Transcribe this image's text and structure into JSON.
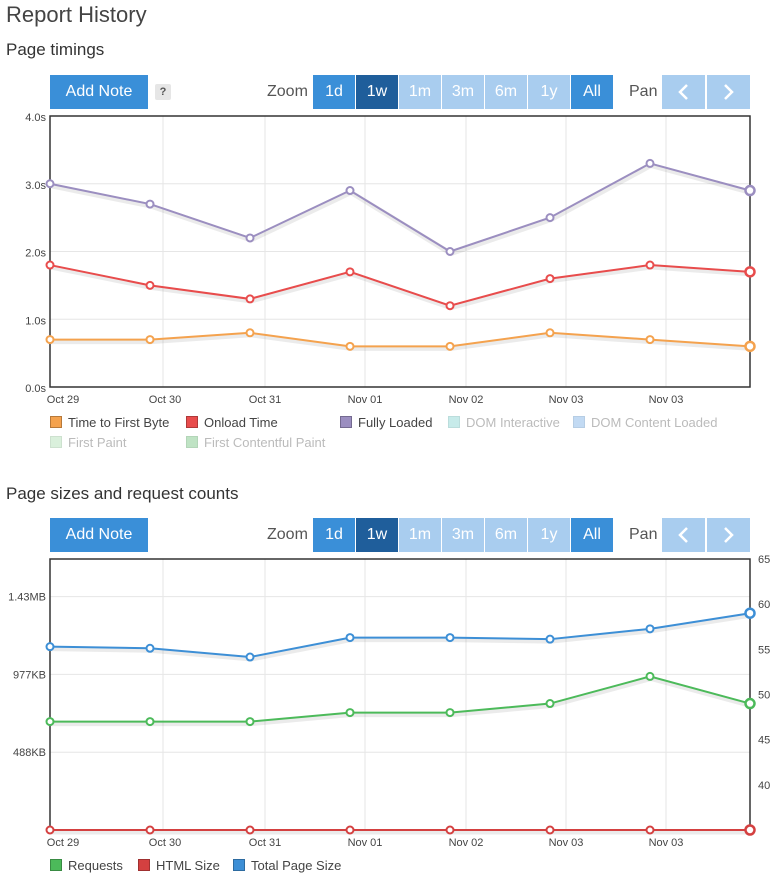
{
  "page_title": "Report History",
  "colors": {
    "accent": "#3a8fd8",
    "accent_dark": "#1f5e9b",
    "accent_light": "#a9cdef",
    "ttfb": "#f4a24e",
    "onload": "#e84c4c",
    "fully_loaded": "#9b8ec0",
    "requests": "#4cba5a",
    "html_size": "#d44040",
    "total_size": "#3d8fd6"
  },
  "controls": {
    "add_note": "Add Note",
    "help": "?",
    "zoom_label": "Zoom",
    "pan_label": "Pan",
    "zoom_options": [
      "1d",
      "1w",
      "1m",
      "3m",
      "6m",
      "1y",
      "All"
    ],
    "zoom_selected": "1w",
    "pan_left_icon": "chevron-left-icon",
    "pan_right_icon": "chevron-right-icon"
  },
  "section_timings": {
    "title": "Page timings",
    "legend": [
      {
        "label": "Time to First Byte",
        "color": "#f4a24e",
        "enabled": true
      },
      {
        "label": "Onload Time",
        "color": "#e84c4c",
        "enabled": true
      },
      {
        "label": "Fully Loaded",
        "color": "#9b8ec0",
        "enabled": true
      },
      {
        "label": "DOM Interactive",
        "color": "#c7ebea",
        "enabled": false
      },
      {
        "label": "DOM Content Loaded",
        "color": "#c2daf3",
        "enabled": false
      },
      {
        "label": "First Paint",
        "color": "#daf0dc",
        "enabled": false
      },
      {
        "label": "First Contentful Paint",
        "color": "#bfe3c4",
        "enabled": false
      }
    ]
  },
  "section_sizes": {
    "title": "Page sizes and request counts",
    "legend": [
      {
        "label": "Requests",
        "color": "#4cba5a",
        "enabled": true
      },
      {
        "label": "HTML Size",
        "color": "#d44040",
        "enabled": true
      },
      {
        "label": "Total Page Size",
        "color": "#3d8fd6",
        "enabled": true
      }
    ]
  },
  "chart_data": [
    {
      "type": "line",
      "title": "Page timings",
      "x": [
        "Oct 29",
        "Oct 30",
        "Oct 31",
        "Nov 01",
        "Nov 02",
        "Nov 03",
        "Nov 03",
        ""
      ],
      "x_tick_labels": [
        "Oct 29",
        "Oct 30",
        "Oct 31",
        "Nov 01",
        "Nov 02",
        "Nov 03",
        "Nov 03"
      ],
      "ylim": [
        0,
        4
      ],
      "y_ticks": [
        "0.0s",
        "1.0s",
        "2.0s",
        "3.0s",
        "4.0s"
      ],
      "grid": true,
      "series": [
        {
          "name": "Fully Loaded",
          "color": "#9b8ec0",
          "values": [
            3.0,
            2.7,
            2.2,
            2.9,
            2.0,
            2.5,
            3.3,
            2.9
          ]
        },
        {
          "name": "Onload Time",
          "color": "#e84c4c",
          "values": [
            1.8,
            1.5,
            1.3,
            1.7,
            1.2,
            1.6,
            1.8,
            1.7
          ]
        },
        {
          "name": "Time to First Byte",
          "color": "#f4a24e",
          "values": [
            0.7,
            0.7,
            0.8,
            0.6,
            0.6,
            0.8,
            0.7,
            0.6
          ]
        }
      ]
    },
    {
      "type": "line",
      "title": "Page sizes and request counts",
      "x_tick_labels": [
        "Oct 29",
        "Oct 30",
        "Oct 31",
        "Nov 01",
        "Nov 02",
        "Nov 03",
        "Nov 03"
      ],
      "y_left_ticks": [
        "488KB",
        "977KB",
        "1.43MB"
      ],
      "y_left_unit_kb": 488,
      "y_left_lim_kb": [
        0,
        1700
      ],
      "y_right_ticks": [
        "40",
        "45",
        "50",
        "55",
        "60",
        "65"
      ],
      "y_right_lim": [
        35,
        65
      ],
      "grid": true,
      "series": [
        {
          "name": "Total Page Size",
          "color": "#3d8fd6",
          "axis": "left",
          "values_kb": [
            1150,
            1140,
            1085,
            1207,
            1207,
            1197,
            1262,
            1360
          ]
        },
        {
          "name": "Requests",
          "color": "#4cba5a",
          "axis": "right",
          "values": [
            47,
            47,
            47,
            48,
            48,
            49,
            52,
            49
          ]
        },
        {
          "name": "HTML Size",
          "color": "#d44040",
          "axis": "left",
          "values_kb": [
            0,
            0,
            0,
            0,
            0,
            0,
            0,
            0
          ]
        }
      ]
    }
  ]
}
